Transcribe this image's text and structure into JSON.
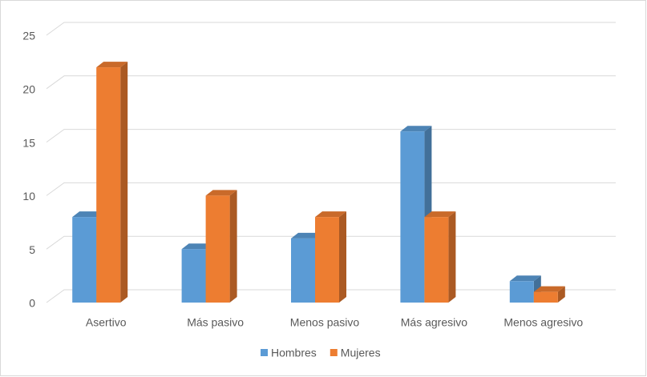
{
  "chart_data": {
    "type": "bar3d",
    "categories": [
      "Asertivo",
      "Más pasivo",
      "Menos pasivo",
      "Más agresivo",
      "Menos agresivo"
    ],
    "series": [
      {
        "name": "Hombres",
        "color": "#5b9bd5",
        "values": [
          8,
          5,
          6,
          16,
          2
        ]
      },
      {
        "name": "Mujeres",
        "color": "#ed7d31",
        "values": [
          22,
          10,
          8,
          8,
          1
        ]
      }
    ],
    "ylim": [
      0,
      25
    ],
    "yticks": [
      0,
      5,
      10,
      15,
      20,
      25
    ],
    "grid": true,
    "legend": "bottom"
  }
}
